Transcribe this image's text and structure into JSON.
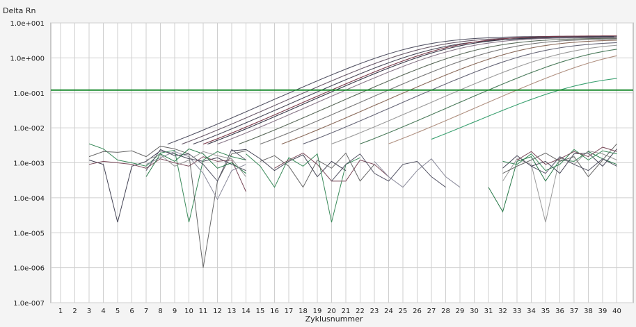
{
  "chart_data": {
    "type": "line",
    "ylabel": "Delta Rn",
    "xlabel": "Zyklusnummer",
    "yscale": "log",
    "ylim": [
      1e-07,
      10
    ],
    "xlim": [
      1,
      40
    ],
    "y_ticks": [
      "1.0e+001",
      "1.0e+000",
      "1.0e-001",
      "1.0e-002",
      "1.0e-003",
      "1.0e-004",
      "1.0e-005",
      "1.0e-006",
      "1.0e-007"
    ],
    "y_tick_values": [
      10,
      1,
      0.1,
      0.01,
      0.001,
      0.0001,
      1e-05,
      1e-06,
      1e-07
    ],
    "x_ticks": [
      "1",
      "2",
      "3",
      "4",
      "5",
      "6",
      "7",
      "8",
      "9",
      "10",
      "11",
      "12",
      "13",
      "14",
      "15",
      "16",
      "17",
      "18",
      "19",
      "20",
      "21",
      "22",
      "23",
      "24",
      "25",
      "26",
      "27",
      "28",
      "29",
      "30",
      "31",
      "32",
      "33",
      "34",
      "35",
      "36",
      "37",
      "38",
      "39",
      "40"
    ],
    "grid": true,
    "threshold": {
      "value": 0.12,
      "color": "#1a8a2e"
    },
    "amplification_colors": [
      "#555566",
      "#6a5a6a",
      "#4a4a5a",
      "#7a3a4a",
      "#3a3a4a",
      "#887788",
      "#5a6a5a",
      "#777777",
      "#8a6a5a",
      "#666677",
      "#999999",
      "#4a7a5a",
      "#b09080",
      "#3aa070"
    ],
    "amplification_curves": [
      {
        "ct": 17.5,
        "plateau": 4.2
      },
      {
        "ct": 18.5,
        "plateau": 4.0
      },
      {
        "ct": 19.3,
        "plateau": 3.8
      },
      {
        "ct": 20.0,
        "plateau": 4.3
      },
      {
        "ct": 20.3,
        "plateau": 4.1
      },
      {
        "ct": 21.0,
        "plateau": 3.9
      },
      {
        "ct": 22.5,
        "plateau": 3.7
      },
      {
        "ct": 24.0,
        "plateau": 3.6
      },
      {
        "ct": 25.5,
        "plateau": 3.4
      },
      {
        "ct": 27.0,
        "plateau": 3.0
      },
      {
        "ct": 29.0,
        "plateau": 2.8
      },
      {
        "ct": 31.0,
        "plateau": 2.6
      },
      {
        "ct": 33.0,
        "plateau": 2.2
      },
      {
        "ct": 36.0,
        "plateau": 0.35
      }
    ],
    "noise_colors": [
      "#444455",
      "#3a8a5a",
      "#666666",
      "#7a4a5a",
      "#555566",
      "#888899",
      "#2a7a4a",
      "#999999"
    ],
    "noise_traces": [
      {
        "x": [
          3,
          4,
          5,
          6,
          7,
          8,
          9,
          10,
          11,
          12,
          13,
          14
        ],
        "y": [
          0.0012,
          0.0009,
          2e-05,
          0.0008,
          0.0011,
          0.0022,
          0.0018,
          0.0013,
          0.0011,
          0.0014,
          0.0009,
          0.0006
        ]
      },
      {
        "x": [
          3,
          4,
          5,
          6,
          7,
          8,
          9,
          10,
          11,
          12,
          13,
          14
        ],
        "y": [
          0.0035,
          0.0025,
          0.0012,
          0.001,
          0.0008,
          0.0019,
          0.0023,
          2e-05,
          0.0012,
          0.0021,
          0.0015,
          0.0012
        ]
      },
      {
        "x": [
          3,
          4,
          5,
          6,
          7,
          8,
          9,
          10,
          11,
          12,
          13,
          14
        ],
        "y": [
          0.0015,
          0.0021,
          0.002,
          0.0022,
          0.0015,
          0.003,
          0.0025,
          0.0018,
          1e-06,
          0.0003,
          0.0018,
          0.0022
        ]
      },
      {
        "x": [
          3,
          4,
          5,
          6,
          7,
          8,
          9,
          10,
          11,
          12,
          13,
          14
        ],
        "y": [
          0.0009,
          0.0011,
          0.001,
          0.0009,
          0.0007,
          0.0013,
          0.001,
          0.0008,
          0.0015,
          0.0011,
          0.0012,
          0.00015
        ]
      },
      {
        "x": [
          7,
          8,
          9,
          10,
          11,
          12,
          13,
          14
        ],
        "y": [
          0.0006,
          0.0024,
          0.0016,
          0.0018,
          0.0009,
          0.0003,
          0.0024,
          0.0012
        ]
      },
      {
        "x": [
          7,
          8,
          9,
          10,
          11,
          12,
          13,
          14
        ],
        "y": [
          0.0009,
          0.0014,
          0.0021,
          0.0015,
          0.0005,
          9e-05,
          0.0006,
          0.0009
        ]
      },
      {
        "x": [
          7,
          8,
          9,
          10,
          11,
          12,
          13,
          14
        ],
        "y": [
          0.0004,
          0.0018,
          0.0011,
          0.0025,
          0.0018,
          0.0007,
          0.001,
          0.0005
        ]
      },
      {
        "x": [
          7,
          8,
          9,
          10,
          11,
          12,
          13,
          14
        ],
        "y": [
          0.0012,
          0.0017,
          0.0008,
          0.0012,
          0.0021,
          0.0016,
          0.0013,
          0.0004
        ]
      },
      {
        "x": [
          13,
          14,
          15,
          16,
          17,
          18,
          19,
          20,
          21
        ],
        "y": [
          0.0022,
          0.0024,
          0.0013,
          0.0006,
          0.0011,
          0.0017,
          0.0004,
          0.0011,
          0.0006
        ]
      },
      {
        "x": [
          14,
          15,
          16,
          17,
          18,
          19,
          20,
          21,
          22
        ],
        "y": [
          0.0018,
          0.0008,
          0.0002,
          0.0014,
          0.0008,
          0.0018,
          2e-05,
          0.0009,
          0.0014
        ]
      },
      {
        "x": [
          15,
          16,
          17,
          18,
          19,
          20,
          21,
          22,
          23
        ],
        "y": [
          0.0011,
          0.0016,
          0.0008,
          0.0002,
          0.0012,
          0.0007,
          0.0019,
          0.0003,
          0.0009
        ]
      },
      {
        "x": [
          16,
          17,
          18,
          19,
          20,
          21,
          22,
          23,
          24
        ],
        "y": [
          0.0007,
          0.0012,
          0.0019,
          0.0009,
          0.0003,
          0.0003,
          0.0012,
          0.0009,
          0.0004
        ]
      },
      {
        "x": [
          20,
          21,
          22,
          23,
          24,
          25,
          26,
          27,
          28
        ],
        "y": [
          0.0003,
          0.0009,
          0.0018,
          0.0005,
          0.0003,
          0.0009,
          0.0011,
          0.0004,
          0.0002
        ]
      },
      {
        "x": [
          23,
          24,
          25,
          26,
          27,
          28,
          29
        ],
        "y": [
          0.0011,
          0.0004,
          0.0002,
          0.0006,
          0.0013,
          0.0004,
          0.0002
        ]
      },
      {
        "x": [
          31,
          32,
          33,
          34,
          35,
          36,
          37,
          38,
          39,
          40
        ],
        "y": [
          0.0002,
          4e-05,
          0.0011,
          0.0015,
          0.0003,
          0.0012,
          0.0011,
          0.0021,
          0.0013,
          0.0009
        ]
      },
      {
        "x": [
          32,
          33,
          34,
          35,
          36,
          37,
          38,
          39,
          40
        ],
        "y": [
          0.0003,
          0.0013,
          0.0009,
          2e-05,
          0.0014,
          0.0009,
          0.0022,
          0.0018,
          0.0012
        ]
      },
      {
        "x": [
          32,
          33,
          34,
          35,
          36,
          37,
          38,
          39,
          40
        ],
        "y": [
          0.0007,
          0.0016,
          0.0008,
          0.0011,
          0.0005,
          0.0018,
          0.0019,
          0.0008,
          0.0025
        ]
      },
      {
        "x": [
          32,
          33,
          34,
          35,
          36,
          37,
          38,
          39,
          40
        ],
        "y": [
          0.0011,
          0.0009,
          0.0018,
          0.0006,
          0.0009,
          0.0024,
          0.0012,
          0.0022,
          0.0018
        ]
      },
      {
        "x": [
          32,
          33,
          34,
          35,
          36,
          37,
          38,
          39,
          40
        ],
        "y": [
          0.0005,
          0.0008,
          0.0012,
          0.0019,
          0.0011,
          0.0015,
          0.0004,
          0.0012,
          0.0035
        ]
      },
      {
        "x": [
          33,
          34,
          35,
          36,
          37,
          38,
          39,
          40
        ],
        "y": [
          0.0012,
          0.0021,
          0.0009,
          0.0013,
          0.0021,
          0.0015,
          0.0028,
          0.0021
        ]
      },
      {
        "x": [
          34,
          35,
          36,
          37,
          38,
          39,
          40
        ],
        "y": [
          0.0008,
          0.0005,
          0.0015,
          0.0009,
          0.0006,
          0.0013,
          0.0008
        ]
      }
    ]
  }
}
